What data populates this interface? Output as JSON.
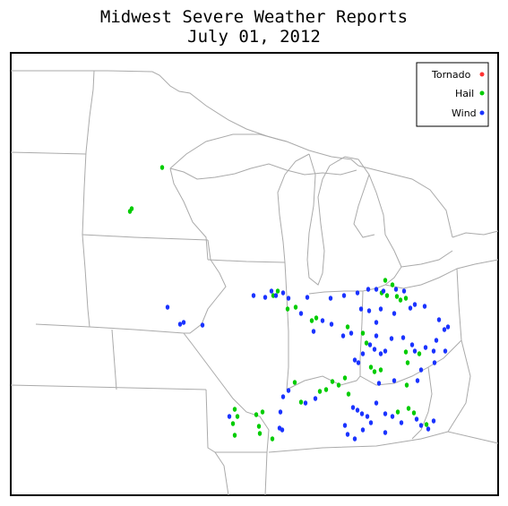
{
  "title": "Midwest Severe Weather Reports",
  "subtitle": "July 01, 2012",
  "legend": [
    {
      "label": "Tornado",
      "color": "#ff3333"
    },
    {
      "label": "Hail",
      "color": "#00cc00"
    },
    {
      "label": "Wind",
      "color": "#1a33ff"
    }
  ],
  "colors": {
    "border": "#000000",
    "boundaries": "#aaaaaa",
    "background": "#ffffff"
  },
  "reports": {
    "hail": [
      [
        181,
        187
      ],
      [
        147,
        233
      ],
      [
        145,
        236
      ],
      [
        310,
        325
      ],
      [
        305,
        330
      ],
      [
        321,
        345
      ],
      [
        330,
        343
      ],
      [
        353,
        355
      ],
      [
        348,
        358
      ],
      [
        388,
        365
      ],
      [
        430,
        313
      ],
      [
        432,
        330
      ],
      [
        426,
        327
      ],
      [
        438,
        318
      ],
      [
        447,
        335
      ],
      [
        453,
        333
      ],
      [
        443,
        331
      ],
      [
        405,
        372
      ],
      [
        409,
        383
      ],
      [
        414,
        410
      ],
      [
        418,
        415
      ],
      [
        425,
        413
      ],
      [
        453,
        393
      ],
      [
        455,
        405
      ],
      [
        468,
        395
      ],
      [
        454,
        430
      ],
      [
        329,
        427
      ],
      [
        336,
        449
      ],
      [
        357,
        437
      ],
      [
        364,
        435
      ],
      [
        371,
        426
      ],
      [
        378,
        430
      ],
      [
        385,
        422
      ],
      [
        389,
        440
      ],
      [
        262,
        457
      ],
      [
        265,
        465
      ],
      [
        260,
        473
      ],
      [
        262,
        486
      ],
      [
        286,
        463
      ],
      [
        293,
        460
      ],
      [
        289,
        476
      ],
      [
        290,
        484
      ],
      [
        304,
        490
      ],
      [
        444,
        460
      ],
      [
        456,
        456
      ],
      [
        462,
        461
      ],
      [
        476,
        474
      ]
    ],
    "wind": [
      [
        187,
        343
      ],
      [
        201,
        362
      ],
      [
        205,
        360
      ],
      [
        226,
        363
      ],
      [
        283,
        330
      ],
      [
        296,
        332
      ],
      [
        303,
        325
      ],
      [
        308,
        330
      ],
      [
        316,
        327
      ],
      [
        322,
        333
      ],
      [
        336,
        350
      ],
      [
        343,
        332
      ],
      [
        369,
        333
      ],
      [
        384,
        330
      ],
      [
        399,
        327
      ],
      [
        411,
        323
      ],
      [
        420,
        323
      ],
      [
        428,
        325
      ],
      [
        442,
        323
      ],
      [
        451,
        325
      ],
      [
        463,
        340
      ],
      [
        474,
        342
      ],
      [
        458,
        344
      ],
      [
        490,
        357
      ],
      [
        496,
        368
      ],
      [
        500,
        365
      ],
      [
        350,
        370
      ],
      [
        360,
        358
      ],
      [
        370,
        362
      ],
      [
        383,
        375
      ],
      [
        392,
        372
      ],
      [
        403,
        345
      ],
      [
        412,
        347
      ],
      [
        420,
        360
      ],
      [
        425,
        345
      ],
      [
        440,
        350
      ],
      [
        413,
        385
      ],
      [
        418,
        390
      ],
      [
        425,
        395
      ],
      [
        430,
        392
      ],
      [
        420,
        375
      ],
      [
        437,
        378
      ],
      [
        450,
        377
      ],
      [
        460,
        385
      ],
      [
        463,
        392
      ],
      [
        475,
        388
      ],
      [
        484,
        392
      ],
      [
        487,
        380
      ],
      [
        497,
        392
      ],
      [
        485,
        405
      ],
      [
        470,
        413
      ],
      [
        466,
        425
      ],
      [
        440,
        425
      ],
      [
        423,
        428
      ],
      [
        396,
        402
      ],
      [
        400,
        405
      ],
      [
        405,
        395
      ],
      [
        316,
        443
      ],
      [
        313,
        460
      ],
      [
        322,
        436
      ],
      [
        341,
        450
      ],
      [
        352,
        445
      ],
      [
        394,
        455
      ],
      [
        399,
        458
      ],
      [
        404,
        462
      ],
      [
        410,
        465
      ],
      [
        414,
        472
      ],
      [
        420,
        450
      ],
      [
        430,
        462
      ],
      [
        438,
        465
      ],
      [
        448,
        472
      ],
      [
        465,
        468
      ],
      [
        470,
        475
      ],
      [
        484,
        470
      ],
      [
        478,
        479
      ],
      [
        385,
        475
      ],
      [
        388,
        485
      ],
      [
        396,
        490
      ],
      [
        405,
        480
      ],
      [
        430,
        483
      ],
      [
        312,
        478
      ],
      [
        315,
        480
      ],
      [
        256,
        465
      ]
    ]
  }
}
